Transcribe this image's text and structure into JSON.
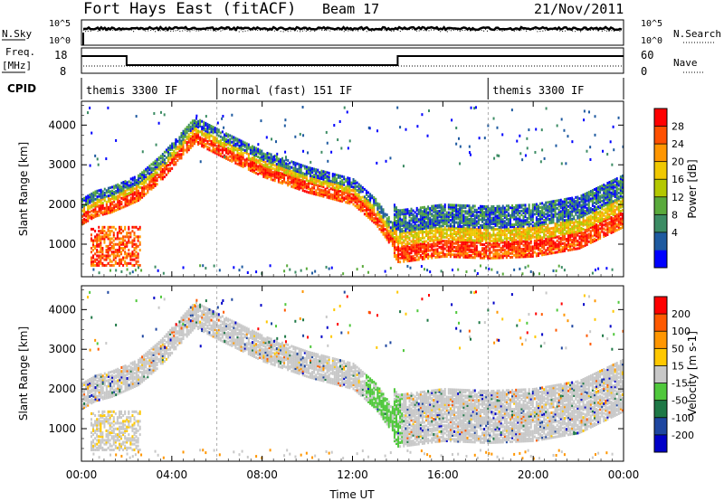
{
  "header": {
    "station": "Fort Hays East (fitACF)",
    "beam": "Beam 17",
    "date": "21/Nov/2011"
  },
  "top_panels": {
    "nsky_label": "N.Sky",
    "nsky_ticks": [
      "10^5",
      "10^0"
    ],
    "nsearch_label": "N.Search",
    "nsearch_ticks": [
      "10^5",
      "10^0"
    ],
    "freq_label": "Freq.",
    "freq_unit": "[MHz]",
    "freq_ticks": [
      "18",
      "8"
    ],
    "nave_label": "Nave",
    "nave_ticks": [
      "60",
      "0"
    ],
    "cpid_label": "CPID",
    "cpid_segments": [
      {
        "name": "themis 3300 IF",
        "start_h": 0
      },
      {
        "name": "normal (fast) 151 IF",
        "start_h": 6
      },
      {
        "name": "themis 3300 IF",
        "start_h": 18
      }
    ],
    "freq_steps": [
      {
        "start_h": 0,
        "end_h": 2,
        "level": 1
      },
      {
        "start_h": 2,
        "end_h": 14,
        "level": 0
      },
      {
        "start_h": 14,
        "end_h": 24,
        "level": 1
      }
    ]
  },
  "chart_data": [
    {
      "type": "heatmap",
      "title": "",
      "xlabel": "Time UT",
      "ylabel": "Slant Range [km]",
      "xlim": [
        0,
        24
      ],
      "ylim": [
        180,
        4600
      ],
      "x_ticks": [
        "00:00",
        "04:00",
        "08:00",
        "12:00",
        "16:00",
        "20:00",
        "00:00"
      ],
      "y_ticks": [
        "1000",
        "2000",
        "3000",
        "4000"
      ],
      "colorbar": {
        "label": "Power [dB]",
        "ticks": [
          "28",
          "24",
          "20",
          "16",
          "12",
          "8",
          "4"
        ],
        "colors": [
          "#0000ff",
          "#1e5aa0",
          "#3c8c64",
          "#5aaa3c",
          "#b4c800",
          "#f0c800",
          "#ff9600",
          "#ff5000",
          "#ff0000"
        ]
      },
      "band_center_km": [
        [
          0,
          1800
        ],
        [
          0.6,
          2000
        ],
        [
          1.3,
          2100
        ],
        [
          2.5,
          2400
        ],
        [
          3.5,
          2900
        ],
        [
          5.0,
          3850
        ],
        [
          6.2,
          3500
        ],
        [
          8.0,
          3000
        ],
        [
          10.0,
          2600
        ],
        [
          12.0,
          2300
        ],
        [
          13.0,
          1800
        ],
        [
          14.0,
          1000
        ],
        [
          16.0,
          1150
        ],
        [
          18.0,
          1100
        ],
        [
          20.0,
          1150
        ],
        [
          22.0,
          1350
        ],
        [
          24.0,
          1900
        ]
      ]
    },
    {
      "type": "heatmap",
      "title": "",
      "xlabel": "Time UT",
      "ylabel": "Slant Range [km]",
      "xlim": [
        0,
        24
      ],
      "ylim": [
        180,
        4600
      ],
      "x_ticks": [
        "00:00",
        "04:00",
        "08:00",
        "12:00",
        "16:00",
        "20:00",
        "00:00"
      ],
      "y_ticks": [
        "1000",
        "2000",
        "3000",
        "4000"
      ],
      "colorbar": {
        "label": "Velocity [m s-1]",
        "ticks": [
          "200",
          "100",
          "50",
          "15",
          "-15",
          "-50",
          "-100",
          "-200"
        ],
        "colors": [
          "#0000c8",
          "#1e46a0",
          "#1e7846",
          "#50c83c",
          "#c8c8c8",
          "#ffc800",
          "#ff9600",
          "#ff5a00",
          "#ff0000"
        ]
      }
    }
  ]
}
